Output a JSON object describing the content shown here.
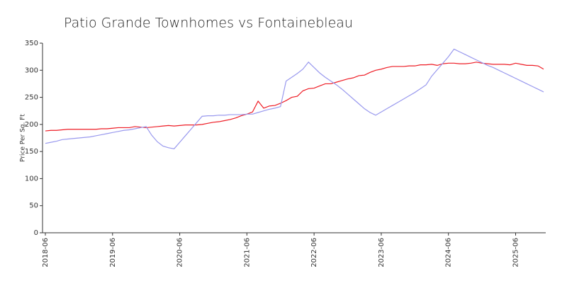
{
  "chart_data": {
    "type": "line",
    "title": "Patio Grande Townhomes vs Fontainebleau",
    "y_label": "Price Per Sq. Ft",
    "x": [
      "2018-06",
      "2018-07",
      "2018-08",
      "2018-09",
      "2018-10",
      "2018-11",
      "2018-12",
      "2019-01",
      "2019-02",
      "2019-03",
      "2019-04",
      "2019-05",
      "2019-06",
      "2019-07",
      "2019-08",
      "2019-09",
      "2019-10",
      "2019-11",
      "2019-12",
      "2020-01",
      "2020-02",
      "2020-03",
      "2020-04",
      "2020-05",
      "2020-06",
      "2020-07",
      "2020-08",
      "2020-09",
      "2020-10",
      "2020-11",
      "2020-12",
      "2021-01",
      "2021-02",
      "2021-03",
      "2021-04",
      "2021-05",
      "2021-06",
      "2021-07",
      "2021-08",
      "2021-09",
      "2021-10",
      "2021-11",
      "2021-12",
      "2022-01",
      "2022-02",
      "2022-03",
      "2022-04",
      "2022-05",
      "2022-06",
      "2022-07",
      "2022-08",
      "2022-09",
      "2022-10",
      "2022-11",
      "2022-12",
      "2023-01",
      "2023-02",
      "2023-03",
      "2023-04",
      "2023-05",
      "2023-06",
      "2023-07",
      "2023-08",
      "2023-09",
      "2023-10",
      "2023-11",
      "2023-12",
      "2024-01",
      "2024-02",
      "2024-03",
      "2024-04",
      "2024-05",
      "2024-06",
      "2024-07",
      "2024-08",
      "2024-09",
      "2024-10",
      "2024-11",
      "2024-12",
      "2025-01",
      "2025-02",
      "2025-03",
      "2025-04",
      "2025-05",
      "2025-06",
      "2025-07",
      "2025-08",
      "2025-09",
      "2025-10",
      "2025-11"
    ],
    "series": [
      {
        "color": "#ee1c25",
        "values": [
          188,
          189,
          189,
          190,
          191,
          191,
          191,
          191,
          191,
          191,
          192,
          192,
          193,
          194,
          194,
          194,
          196,
          195,
          194,
          195,
          196,
          197,
          198,
          197,
          198,
          199,
          199,
          199,
          200,
          202,
          204,
          205,
          207,
          209,
          212,
          216,
          219,
          223,
          243,
          230,
          234,
          235,
          239,
          244,
          250,
          252,
          262,
          266,
          267,
          271,
          275,
          275,
          278,
          281,
          284,
          286,
          290,
          291,
          296,
          300,
          302,
          305,
          307,
          307,
          307,
          308,
          308,
          310,
          310,
          311,
          309,
          312,
          313,
          313,
          312,
          312,
          313,
          315,
          313,
          312,
          311,
          311,
          311,
          310,
          313,
          311,
          309,
          309,
          308,
          302
        ]
      },
      {
        "color": "#9999ee",
        "values": [
          165,
          167,
          169,
          172,
          173,
          174,
          175,
          176,
          177,
          179,
          181,
          183,
          185,
          187,
          189,
          190,
          192,
          194,
          196,
          180,
          168,
          160,
          157,
          155,
          167,
          179,
          191,
          203,
          215,
          216,
          216,
          217,
          217,
          218,
          218,
          218,
          219,
          219,
          222,
          225,
          228,
          230,
          233,
          280,
          287,
          294,
          302,
          315,
          305,
          295,
          287,
          280,
          273,
          265,
          256,
          247,
          238,
          229,
          222,
          217,
          223,
          229,
          235,
          241,
          247,
          253,
          259,
          266,
          273,
          289,
          301,
          313,
          325,
          339,
          334,
          329,
          324,
          319,
          314,
          309,
          305,
          300,
          295,
          290,
          285,
          280,
          275,
          270,
          265,
          260
        ]
      }
    ],
    "xlim": [
      "2018-06",
      "2025-11"
    ],
    "xticks": [
      "2018-06",
      "2019-06",
      "2020-06",
      "2021-06",
      "2022-06",
      "2023-06",
      "2024-06",
      "2025-06"
    ],
    "ylim": [
      0,
      350
    ],
    "yticks": [
      0,
      50,
      100,
      150,
      200,
      250,
      300,
      350
    ]
  }
}
